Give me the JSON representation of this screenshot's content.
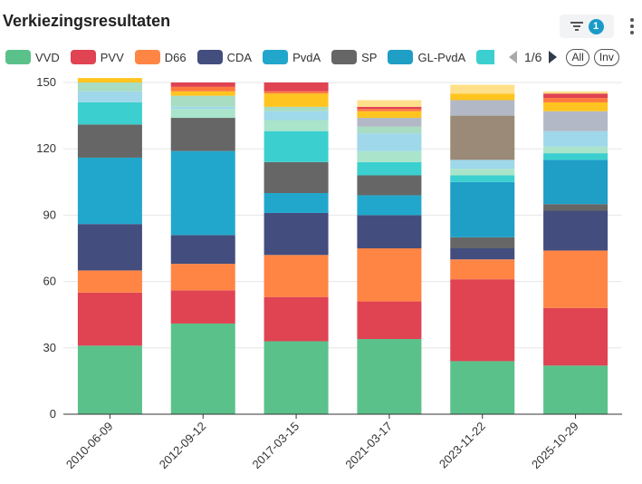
{
  "header": {
    "title": "Verkiezingsresultaten",
    "filter_count": "1"
  },
  "legend": {
    "items": [
      {
        "label": "VVD",
        "color": "#5bc18a"
      },
      {
        "label": "PVV",
        "color": "#e04352"
      },
      {
        "label": "D66",
        "color": "#ff8545"
      },
      {
        "label": "CDA",
        "color": "#434e7e"
      },
      {
        "label": "PvdA",
        "color": "#22a7cc"
      },
      {
        "label": "SP",
        "color": "#666666"
      },
      {
        "label": "GL-PvdA",
        "color": "#1f9ec6"
      },
      {
        "label": "",
        "color": "#3ccfcf"
      }
    ],
    "page": "1/6",
    "all_label": "All",
    "inv_label": "Inv"
  },
  "chart_data": {
    "type": "bar",
    "stacked": true,
    "title": "Verkiezingsresultaten",
    "categories": [
      "2010-06-09",
      "2012-09-12",
      "2017-03-15",
      "2021-03-17",
      "2023-11-22",
      "2025-10-29"
    ],
    "ylim": [
      0,
      150
    ],
    "yticks": [
      0,
      30,
      60,
      90,
      120,
      150
    ],
    "grid": true,
    "series": [
      {
        "name": "VVD",
        "color": "#5bc18a",
        "values": [
          31,
          41,
          33,
          34,
          24,
          22
        ]
      },
      {
        "name": "PVV",
        "color": "#e04352",
        "values": [
          24,
          15,
          20,
          17,
          37,
          26
        ]
      },
      {
        "name": "D66",
        "color": "#ff8545",
        "values": [
          10,
          12,
          19,
          24,
          9,
          26
        ]
      },
      {
        "name": "CDA",
        "color": "#434e7e",
        "values": [
          21,
          13,
          19,
          15,
          5,
          18
        ]
      },
      {
        "name": "PvdA",
        "color": "#22a7cc",
        "values": [
          30,
          38,
          9,
          9,
          0,
          0
        ]
      },
      {
        "name": "SP",
        "color": "#666666",
        "values": [
          15,
          15,
          14,
          9,
          5,
          3
        ]
      },
      {
        "name": "GL-PvdA",
        "color": "#1f9ec6",
        "values": [
          0,
          0,
          0,
          0,
          25,
          20
        ]
      },
      {
        "name": "",
        "color": "#3ccfcf",
        "values": [
          10,
          0,
          14,
          6,
          3,
          3
        ]
      },
      {
        "name": "",
        "color": "#a9e4cb",
        "values": [
          0,
          4,
          5,
          5,
          3,
          3
        ]
      },
      {
        "name": "",
        "color": "#9ed8ea",
        "values": [
          5,
          1,
          4,
          8,
          4,
          7
        ]
      },
      {
        "name": "",
        "color": "#a8dcc3",
        "values": [
          4,
          5,
          2,
          3,
          0,
          0
        ]
      },
      {
        "name": "",
        "color": "#9b8a77",
        "values": [
          0,
          0,
          0,
          0,
          20,
          0
        ]
      },
      {
        "name": "",
        "color": "#b2b8c6",
        "values": [
          0,
          0,
          0,
          4,
          7,
          9
        ]
      },
      {
        "name": "",
        "color": "#ffc41f",
        "values": [
          2,
          2,
          6,
          3,
          3,
          4
        ]
      },
      {
        "name": "",
        "color": "#ff7a3d",
        "values": [
          0,
          2,
          1,
          1,
          0,
          2
        ]
      },
      {
        "name": "",
        "color": "#e04352",
        "values": [
          0,
          2,
          4,
          1,
          0,
          2
        ]
      },
      {
        "name": "",
        "color": "#ffe08a",
        "values": [
          0,
          0,
          0,
          3,
          4,
          1
        ]
      }
    ]
  }
}
